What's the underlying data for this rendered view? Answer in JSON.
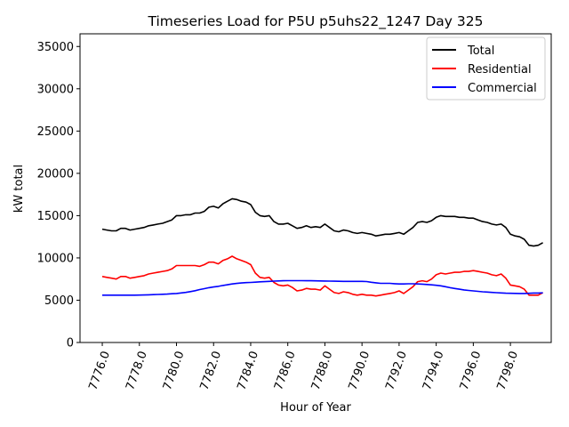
{
  "chart_data": {
    "type": "line",
    "title": "Timeseries Load for P5U p5uhs22_1247  Day 325",
    "xlabel": "Hour of Year",
    "ylabel": "kW total",
    "xlim": [
      7774.8,
      7800.2
    ],
    "ylim": [
      0,
      36500
    ],
    "xticks": [
      7776,
      7778,
      7780,
      7782,
      7784,
      7786,
      7788,
      7790,
      7792,
      7794,
      7796,
      7798
    ],
    "xtick_labels": [
      "7776.0",
      "7778.0",
      "7780.0",
      "7782.0",
      "7784.0",
      "7786.0",
      "7788.0",
      "7790.0",
      "7792.0",
      "7794.0",
      "7796.0",
      "7798.0"
    ],
    "yticks": [
      0,
      5000,
      10000,
      15000,
      20000,
      25000,
      30000,
      35000
    ],
    "ytick_labels": [
      "0",
      "5000",
      "10000",
      "15000",
      "20000",
      "25000",
      "30000",
      "35000"
    ],
    "legend_position": "top-right",
    "x": [
      7776,
      7776.25,
      7776.5,
      7776.75,
      7777,
      7777.25,
      7777.5,
      7777.75,
      7778,
      7778.25,
      7778.5,
      7778.75,
      7779,
      7779.25,
      7779.5,
      7779.75,
      7780,
      7780.25,
      7780.5,
      7780.75,
      7781,
      7781.25,
      7781.5,
      7781.75,
      7782,
      7782.25,
      7782.5,
      7782.75,
      7783,
      7783.25,
      7783.5,
      7783.75,
      7784,
      7784.25,
      7784.5,
      7784.75,
      7785,
      7785.25,
      7785.5,
      7785.75,
      7786,
      7786.25,
      7786.5,
      7786.75,
      7787,
      7787.25,
      7787.5,
      7787.75,
      7788,
      7788.25,
      7788.5,
      7788.75,
      7789,
      7789.25,
      7789.5,
      7789.75,
      7790,
      7790.25,
      7790.5,
      7790.75,
      7791,
      7791.25,
      7791.5,
      7791.75,
      7792,
      7792.25,
      7792.5,
      7792.75,
      7793,
      7793.25,
      7793.5,
      7793.75,
      7794,
      7794.25,
      7794.5,
      7794.75,
      7795,
      7795.25,
      7795.5,
      7795.75,
      7796,
      7796.25,
      7796.5,
      7796.75,
      7797,
      7797.25,
      7797.5,
      7797.75,
      7798,
      7798.25,
      7798.5,
      7798.75,
      7799,
      7799.25,
      7799.5,
      7799.75
    ],
    "series": [
      {
        "name": "Total",
        "color": "#000000",
        "values": [
          13400,
          13300,
          13200,
          13200,
          13500,
          13500,
          13300,
          13400,
          13500,
          13600,
          13800,
          13900,
          14000,
          14100,
          14300,
          14500,
          15000,
          15000,
          15100,
          15100,
          15300,
          15300,
          15500,
          16000,
          16100,
          15900,
          16400,
          16700,
          17000,
          16900,
          16700,
          16600,
          16300,
          15400,
          15000,
          14900,
          15000,
          14300,
          14000,
          14000,
          14100,
          13800,
          13500,
          13600,
          13800,
          13600,
          13700,
          13600,
          14000,
          13600,
          13200,
          13100,
          13300,
          13200,
          13000,
          12900,
          13000,
          12900,
          12800,
          12600,
          12700,
          12800,
          12800,
          12900,
          13000,
          12800,
          13200,
          13600,
          14200,
          14300,
          14200,
          14400,
          14800,
          15000,
          14900,
          14900,
          14900,
          14800,
          14800,
          14700,
          14700,
          14500,
          14300,
          14200,
          14000,
          13900,
          14000,
          13600,
          12800,
          12600,
          12500,
          12200,
          11500,
          11400,
          11500,
          11800
        ]
      },
      {
        "name": "Residential",
        "color": "#ff0000",
        "values": [
          7800,
          7700,
          7600,
          7500,
          7800,
          7800,
          7600,
          7700,
          7800,
          7900,
          8100,
          8200,
          8300,
          8400,
          8500,
          8700,
          9100,
          9100,
          9100,
          9100,
          9100,
          9000,
          9200,
          9500,
          9500,
          9300,
          9700,
          9900,
          10200,
          9900,
          9700,
          9500,
          9200,
          8200,
          7700,
          7600,
          7700,
          7100,
          6800,
          6700,
          6800,
          6500,
          6100,
          6200,
          6400,
          6300,
          6300,
          6200,
          6700,
          6300,
          5900,
          5800,
          6000,
          5900,
          5700,
          5600,
          5700,
          5600,
          5600,
          5500,
          5600,
          5700,
          5800,
          5900,
          6100,
          5800,
          6200,
          6600,
          7200,
          7300,
          7200,
          7500,
          8000,
          8200,
          8100,
          8200,
          8300,
          8300,
          8400,
          8400,
          8500,
          8400,
          8300,
          8200,
          8000,
          7900,
          8100,
          7600,
          6800,
          6700,
          6600,
          6300,
          5600,
          5600,
          5600,
          5900
        ]
      },
      {
        "name": "Commercial",
        "color": "#0000ff",
        "values": [
          5600,
          5600,
          5600,
          5600,
          5600,
          5600,
          5600,
          5600,
          5610,
          5620,
          5640,
          5660,
          5680,
          5700,
          5720,
          5760,
          5800,
          5860,
          5920,
          6020,
          6120,
          6260,
          6360,
          6480,
          6560,
          6640,
          6740,
          6830,
          6920,
          6980,
          7040,
          7080,
          7100,
          7130,
          7170,
          7200,
          7230,
          7260,
          7280,
          7300,
          7310,
          7310,
          7310,
          7310,
          7300,
          7300,
          7290,
          7280,
          7270,
          7260,
          7250,
          7240,
          7230,
          7230,
          7230,
          7230,
          7230,
          7210,
          7120,
          7060,
          7000,
          7000,
          7000,
          6950,
          6920,
          6920,
          6940,
          6940,
          6920,
          6900,
          6860,
          6820,
          6760,
          6700,
          6600,
          6480,
          6380,
          6300,
          6220,
          6150,
          6100,
          6050,
          6000,
          5960,
          5920,
          5890,
          5860,
          5830,
          5820,
          5810,
          5800,
          5800,
          5820,
          5850,
          5850,
          5870
        ]
      }
    ]
  }
}
